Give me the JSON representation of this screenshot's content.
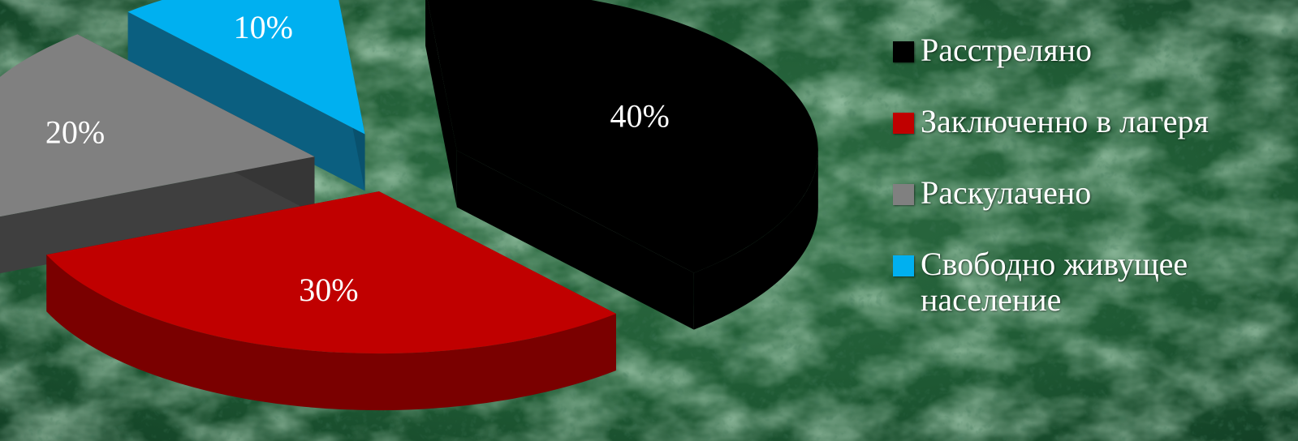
{
  "chart_data": {
    "type": "pie",
    "title": "",
    "slices": [
      {
        "name": "Расстреляно",
        "value": 40,
        "label": "40%",
        "color": "#000000",
        "side_color": "#000000"
      },
      {
        "name": "Заключенно в лагеря",
        "value": 30,
        "label": "30%",
        "color": "#c00000",
        "side_color": "#7a0000"
      },
      {
        "name": "Раскулачено",
        "value": 20,
        "label": "20%",
        "color": "#808080",
        "side_color": "#3f3f3f"
      },
      {
        "name": "Свободно живущее население",
        "value": 10,
        "label": "10%",
        "color": "#00b0f0",
        "side_color": "#0b5f80"
      }
    ],
    "legend_position": "right",
    "exploded": true,
    "three_d": true
  },
  "colors": {
    "background": "#1f5a34",
    "background_light": "#4d8a5e",
    "background_dark": "#0e3520"
  }
}
